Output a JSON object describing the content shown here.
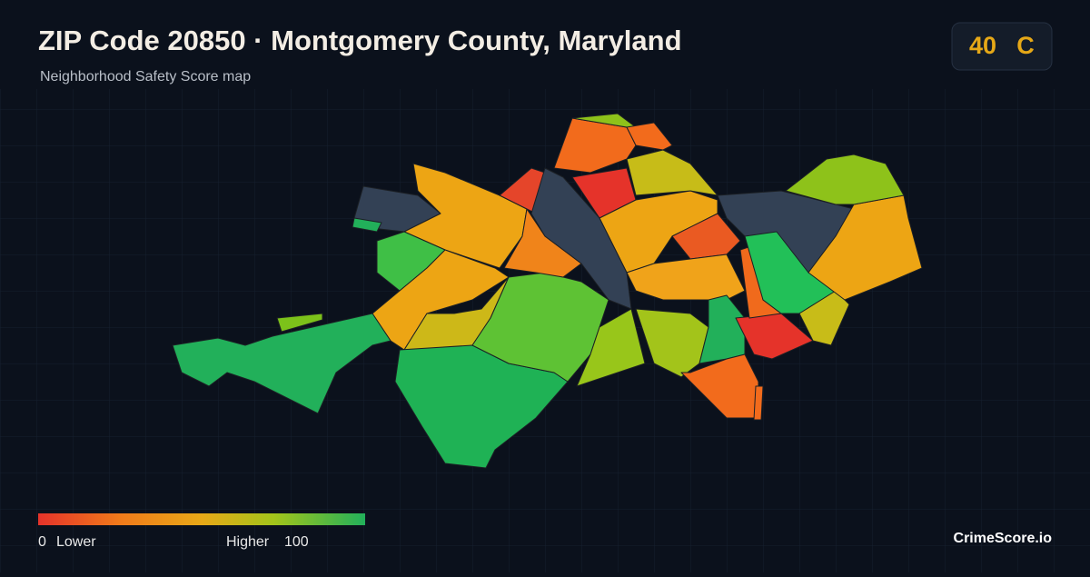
{
  "header": {
    "title": "ZIP Code 20850 · Montgomery County, Maryland",
    "subtitle": "Neighborhood Safety Score map"
  },
  "score": {
    "value": "40",
    "grade": "C"
  },
  "legend": {
    "min": "0",
    "min_label": "Lower",
    "max_label": "Higher",
    "max": "100"
  },
  "brand": "CrimeScore.io"
}
